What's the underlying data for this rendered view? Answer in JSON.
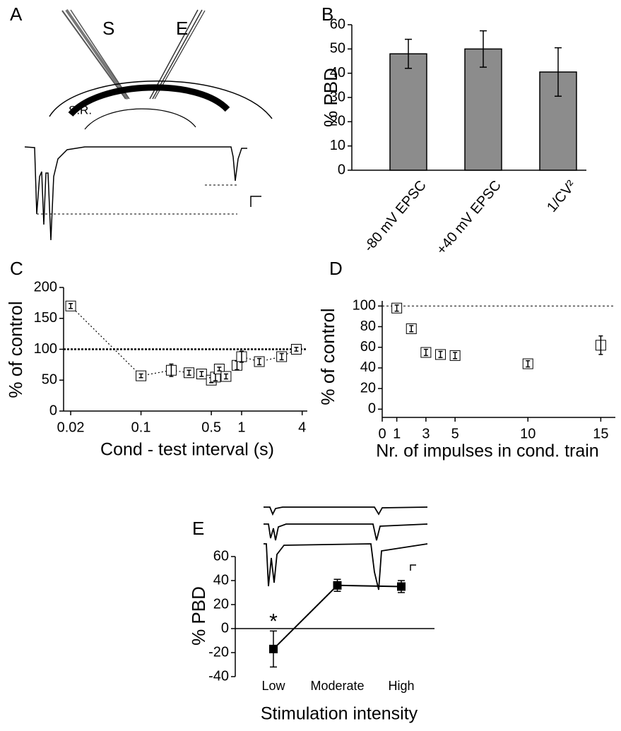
{
  "panels": {
    "A": {
      "letter": "A",
      "labels": [
        "S",
        "E",
        "S.R."
      ]
    }
  },
  "chart_data": [
    {
      "type": "bar",
      "panel": "B",
      "y_label": "% PBD",
      "categories": [
        "-80 mV EPSC",
        "+40 mV EPSC",
        "1/CV²"
      ],
      "values": [
        48,
        50,
        40.5
      ],
      "errors": [
        6,
        7.5,
        10
      ],
      "color": "#8c8c8c",
      "ylim": [
        0,
        60
      ],
      "yticks": [
        0,
        10,
        20,
        30,
        40,
        50,
        60
      ]
    },
    {
      "type": "scatter",
      "panel": "C",
      "y_label": "% of control",
      "x_label": "Cond - test interval (s)",
      "x": [
        0.02,
        0.1,
        0.2,
        0.3,
        0.4,
        0.5,
        0.55,
        0.6,
        0.7,
        0.9,
        1,
        1.5,
        2.5,
        3.5
      ],
      "values": [
        170,
        57,
        66,
        62,
        60,
        50,
        55,
        68,
        56,
        74,
        88,
        80,
        88,
        100
      ],
      "errors": [
        4,
        3,
        10,
        4,
        4,
        4,
        6,
        3,
        4,
        7,
        9,
        5,
        5,
        3
      ],
      "connect": true,
      "ref_line": 100,
      "xscale": "log",
      "xlim": [
        0.017,
        4.5
      ],
      "xticks": [
        0.02,
        0.1,
        0.5,
        1,
        4
      ],
      "ylim": [
        0,
        200
      ],
      "yticks": [
        0,
        50,
        100,
        150,
        200
      ]
    },
    {
      "type": "scatter",
      "panel": "D",
      "y_label": "% of control",
      "x_label": "Nr. of impulses in cond. train",
      "x": [
        1,
        2,
        3,
        4,
        5,
        10,
        15
      ],
      "values": [
        98,
        78,
        55,
        53,
        52,
        44,
        62
      ],
      "errors": [
        3,
        3,
        3,
        3,
        3,
        3,
        9
      ],
      "connect": false,
      "ref_line": 100,
      "xlim": [
        0,
        16
      ],
      "xticks": [
        0,
        1,
        3,
        5,
        10,
        15
      ],
      "ylim": [
        -8,
        105
      ],
      "yticks": [
        0,
        20,
        40,
        60,
        80,
        100
      ]
    },
    {
      "type": "line",
      "panel": "E",
      "y_label": "% PBD",
      "x_label": "Stimulation intensity",
      "categories": [
        "Low",
        "Moderate",
        "High"
      ],
      "values": [
        -17,
        36,
        35
      ],
      "errors": [
        15,
        5,
        5
      ],
      "annotation": "*",
      "color": "#000000",
      "ylim": [
        -40,
        60
      ],
      "yticks": [
        -40,
        -20,
        0,
        20,
        40,
        60
      ]
    }
  ]
}
